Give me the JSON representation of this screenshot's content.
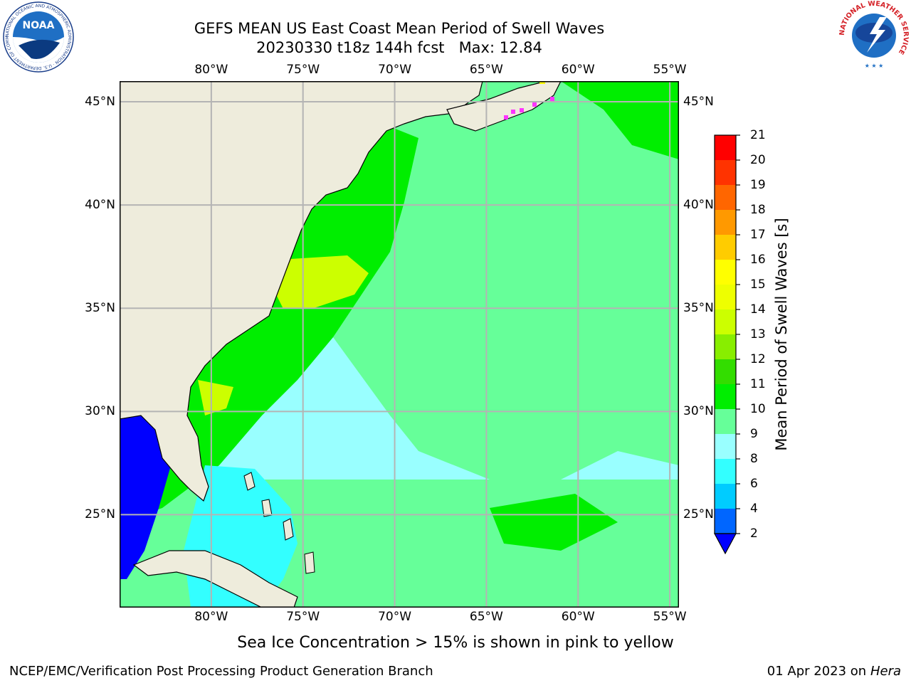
{
  "title": {
    "line1": "GEFS MEAN US East Coast Mean Period of Swell Waves",
    "line2": "20230330 t18z 144h fcst   Max: 12.84"
  },
  "logos": {
    "noaa": {
      "text": "NOAA",
      "ring_text": "NATIONAL OCEANIC AND ATMOSPHERIC ADMINISTRATION · U.S. DEPARTMENT OF COMMERCE"
    },
    "nws": {
      "ring_text": "NATIONAL WEATHER SERVICE"
    }
  },
  "map": {
    "lon_labels": [
      "80°W",
      "75°W",
      "70°W",
      "65°W",
      "60°W",
      "55°W"
    ],
    "lat_labels": [
      "45°N",
      "40°N",
      "35°N",
      "30°N",
      "25°N"
    ],
    "lon_values": [
      -80,
      -75,
      -70,
      -65,
      -60,
      -55
    ],
    "lat_values": [
      45,
      40,
      35,
      30,
      25
    ],
    "extent": {
      "lon_min": -85,
      "lon_max": -54.5,
      "lat_min": 20.5,
      "lat_max": 46
    }
  },
  "colorbar": {
    "label": "Mean Period of Swell Waves [s]",
    "ticks": [
      "2",
      "4",
      "6",
      "8",
      "9",
      "10",
      "11",
      "12",
      "13",
      "14",
      "15",
      "16",
      "17",
      "18",
      "19",
      "20",
      "21"
    ],
    "colors": [
      "#0066ff",
      "#00ccff",
      "#33ffff",
      "#99ffff",
      "#66ff99",
      "#00ee00",
      "#33dd00",
      "#88ee00",
      "#ccff00",
      "#eeff00",
      "#ffff00",
      "#ffcc00",
      "#ff9900",
      "#ff6600",
      "#ff3300",
      "#ff0000"
    ],
    "under_color": "#0000ff"
  },
  "palette": {
    "land": "#eeecdc",
    "grid": "#b4b4b4",
    "low_period": "#0000ff",
    "sea_ice": "#ff33ff"
  },
  "footer": {
    "note": "Sea Ice Concentration > 15% is shown in pink to yellow",
    "credit": "NCEP/EMC/Verification Post Processing Product Generation Branch",
    "date": "01 Apr 2023 on",
    "machine": "Hera"
  }
}
